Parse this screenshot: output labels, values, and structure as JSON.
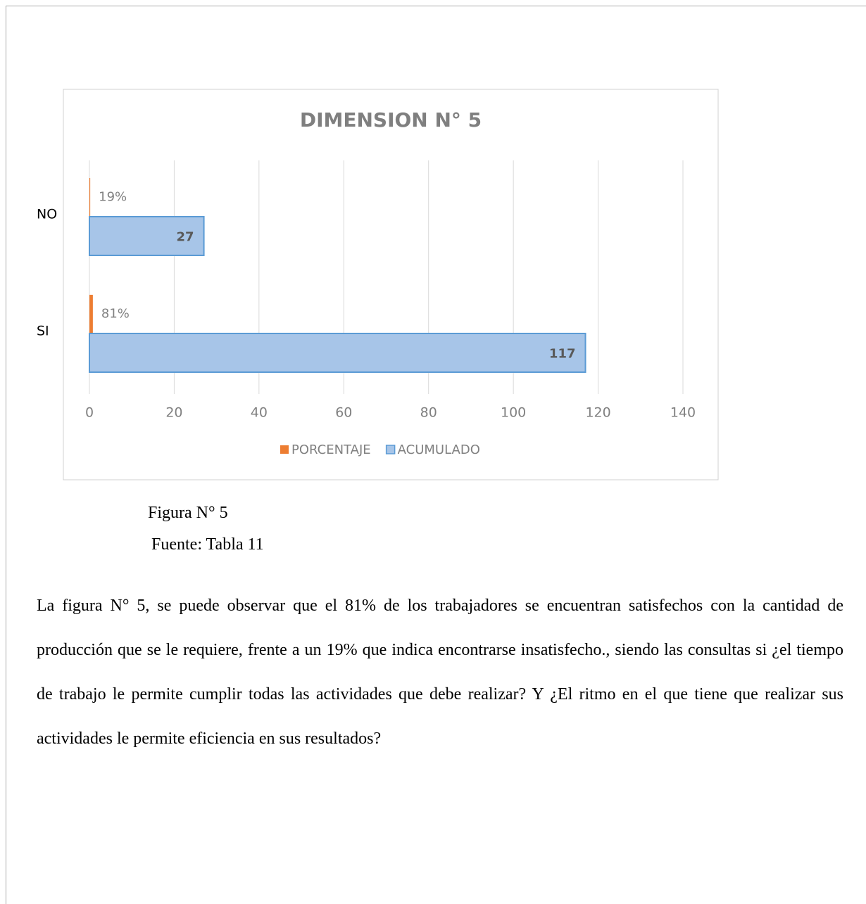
{
  "chart_data": {
    "type": "bar",
    "orientation": "horizontal",
    "title": "DIMENSION  N° 5",
    "categories": [
      "NO",
      "SI"
    ],
    "series": [
      {
        "name": "PORCENTAJE",
        "color": "#ed7d31",
        "values": [
          0.19,
          0.81
        ],
        "value_labels": [
          "19%",
          "81%"
        ]
      },
      {
        "name": "ACUMULADO",
        "color": "#5b9bd5",
        "values": [
          27,
          117
        ]
      }
    ],
    "xlim": [
      0,
      140
    ],
    "xticks": [
      0,
      20,
      40,
      60,
      80,
      100,
      120,
      140
    ],
    "grid": true,
    "legend": "bottom"
  },
  "caption": {
    "figure": "Figura N° 5",
    "source": "Fuente: Tabla 11"
  },
  "paragraph": "La figura N° 5, se puede observar que el 81% de los trabajadores se encuentran satisfechos con la cantidad de producción que se le requiere, frente a un 19% que indica encontrarse insatisfecho., siendo las consultas si ¿el tiempo de trabajo le permite cumplir todas las actividades que debe realizar? Y ¿El ritmo en el que tiene que realizar sus actividades le permite eficiencia en sus resultados?"
}
